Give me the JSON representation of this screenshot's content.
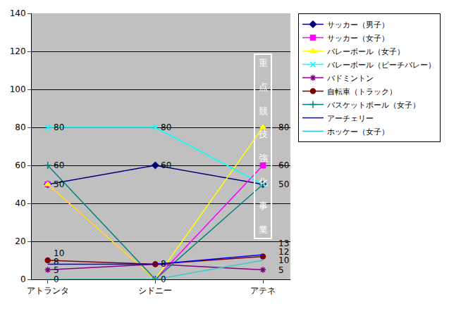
{
  "chart_data": {
    "type": "line",
    "categories": [
      "アトランタ",
      "シドニー",
      "アテネ"
    ],
    "ylim": [
      0,
      140
    ],
    "yticks": [
      0,
      20,
      40,
      60,
      80,
      100,
      120,
      140
    ],
    "grid": true,
    "legend": "right",
    "data_labels": true,
    "annotation": "重点競技強化事業",
    "series": [
      {
        "name": "サッカー（男子）",
        "color": "#000080",
        "marker": "diamond",
        "values": [
          50,
          60,
          50
        ]
      },
      {
        "name": "サッカー（女子）",
        "color": "#ff00ff",
        "marker": "square",
        "values": [
          50,
          0,
          60
        ]
      },
      {
        "name": "バレーボール（女子）",
        "color": "#ffff00",
        "marker": "triangle",
        "values": [
          50,
          0,
          80
        ]
      },
      {
        "name": "バレーボール（ビーチバレー）",
        "color": "#00ffff",
        "marker": "x",
        "values": [
          80,
          80,
          50
        ]
      },
      {
        "name": "バドミントン",
        "color": "#800080",
        "marker": "asterisk",
        "values": [
          5,
          8,
          5
        ]
      },
      {
        "name": "自転車（トラック）",
        "color": "#800000",
        "marker": "circle",
        "values": [
          10,
          8,
          12
        ]
      },
      {
        "name": "バスケットボール（女子）",
        "color": "#008080",
        "marker": "plus",
        "values": [
          60,
          0,
          50
        ]
      },
      {
        "name": "アーチェリー",
        "color": "#0000ff",
        "marker": "none",
        "values": [
          8,
          8,
          13
        ]
      },
      {
        "name": "ホッケー（女子）",
        "color": "#33cccc",
        "marker": "none",
        "values": [
          0,
          0,
          10
        ]
      }
    ]
  }
}
